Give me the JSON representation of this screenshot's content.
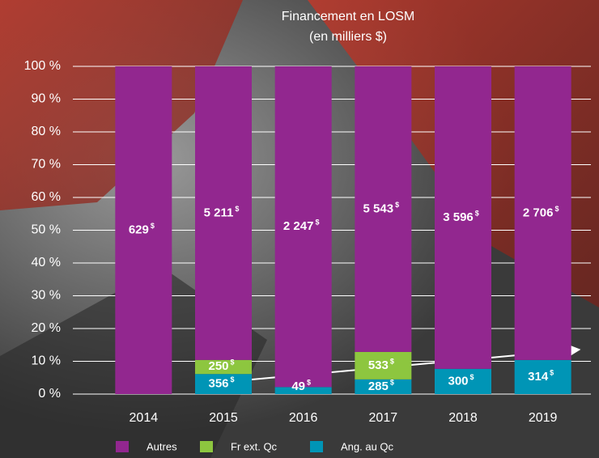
{
  "chart_data": {
    "type": "bar",
    "stacking": "percent",
    "title": "Financement en LOSM",
    "subtitle": "(en milliers $)",
    "unit": "$",
    "categories": [
      "2014",
      "2015",
      "2016",
      "2017",
      "2018",
      "2019"
    ],
    "series": [
      {
        "name": "Autres",
        "color": "#92278f",
        "values": [
          629,
          5211,
          2247,
          5543,
          3596,
          2706
        ],
        "value_labels": [
          "629",
          "5 211",
          "2 247",
          "5 543",
          "3 596",
          "2 706"
        ]
      },
      {
        "name": "Fr ext. Qc",
        "color": "#8dc63f",
        "values": [
          null,
          250,
          null,
          533,
          null,
          null
        ],
        "value_labels": [
          null,
          "250",
          null,
          "533",
          null,
          null
        ]
      },
      {
        "name": "Ang. au Qc",
        "color": "#0095b6",
        "values": [
          null,
          356,
          49,
          285,
          300,
          314
        ],
        "value_labels": [
          null,
          "356",
          "49",
          "285",
          "300",
          "314"
        ]
      }
    ],
    "ylim": [
      0,
      100
    ],
    "yticks": [
      {
        "value": 0,
        "label": "0 %"
      },
      {
        "value": 10,
        "label": "10 %"
      },
      {
        "value": 20,
        "label": "20 %"
      },
      {
        "value": 30,
        "label": "30 %"
      },
      {
        "value": 40,
        "label": "40 %"
      },
      {
        "value": 50,
        "label": "50 %"
      },
      {
        "value": 60,
        "label": "60 %"
      },
      {
        "value": 70,
        "label": "70 %"
      },
      {
        "value": 80,
        "label": "80 %"
      },
      {
        "value": 90,
        "label": "90 %"
      },
      {
        "value": 100,
        "label": "100 %"
      }
    ],
    "grid": true
  }
}
